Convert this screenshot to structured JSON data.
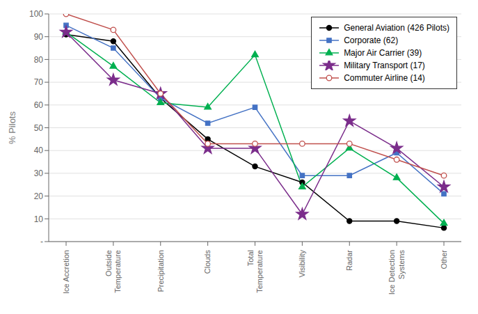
{
  "chart_data": {
    "type": "line",
    "categories": [
      "Ice Accretion",
      "Outside\nTemperature",
      "Precipitation",
      "Clouds",
      "Total\nTemperature",
      "Visibility",
      "Radar",
      "Ice Detection\nSystems",
      "Other"
    ],
    "series": [
      {
        "name": "General Aviation (426 Pilots)",
        "color": "#000000",
        "marker": "circle",
        "line_style": "solid",
        "values": [
          91,
          88,
          63,
          45,
          33,
          26,
          9,
          9,
          6
        ]
      },
      {
        "name": "Corporate (62)",
        "color": "#4472C4",
        "marker": "square",
        "line_style": "solid",
        "values": [
          95,
          85,
          63,
          52,
          59,
          29,
          29,
          39,
          21
        ]
      },
      {
        "name": "Major Air Carrier (39)",
        "color": "#00B050",
        "marker": "triangle",
        "line_style": "solid",
        "values": [
          92,
          77,
          61,
          59,
          82,
          24,
          41,
          28,
          8
        ]
      },
      {
        "name": "Military Transport (17)",
        "color": "#7B2D8B",
        "marker": "star",
        "line_style": "solid",
        "values": [
          92,
          71,
          65,
          41,
          41,
          12,
          53,
          41,
          24
        ]
      },
      {
        "name": "Commuter Airline (14)",
        "color": "#C0504D",
        "marker": "open_circle",
        "line_style": "solid",
        "values": [
          100,
          93,
          65,
          43,
          43,
          43,
          43,
          36,
          29
        ]
      }
    ],
    "ylabel": "% Pilots",
    "ylim": [
      0,
      100
    ],
    "yticks": [
      {
        "value": 0,
        "label": "-"
      },
      10,
      20,
      30,
      40,
      50,
      60,
      70,
      80,
      90,
      100
    ],
    "grid": true,
    "legend": "upper right"
  }
}
